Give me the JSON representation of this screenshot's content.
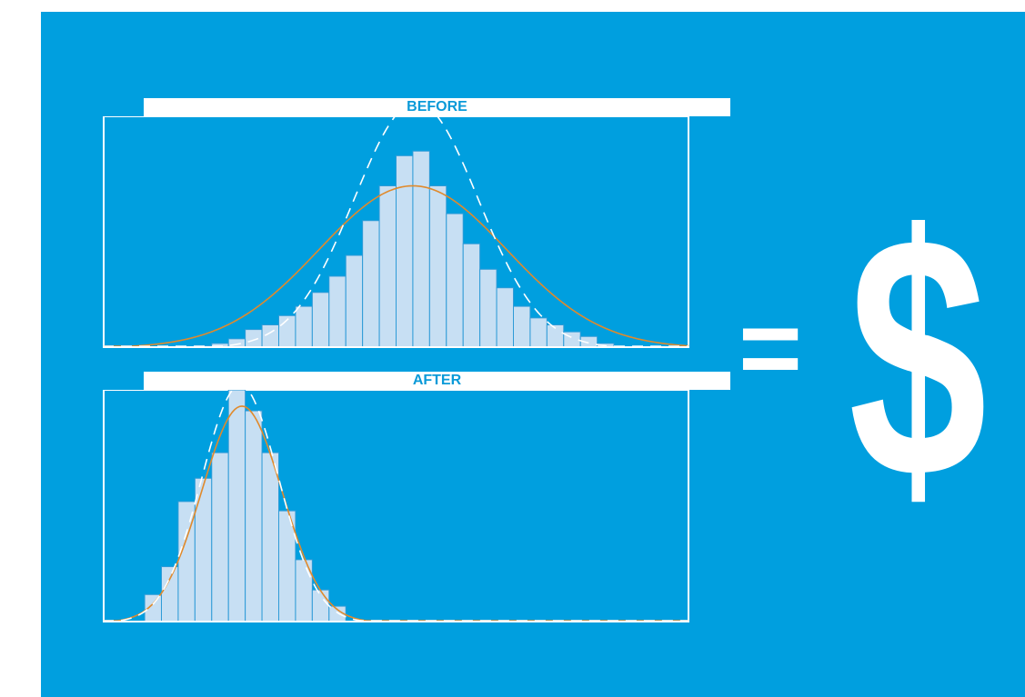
{
  "colors": {
    "background": "#009fdf",
    "bar_fill": "#c7dff3",
    "bar_stroke": "#2e9bd7",
    "fit_curve": "#e08a2c",
    "target_curve": "#ffffff",
    "panel_label_text": "#0a9ad8",
    "symbols": "#ffffff"
  },
  "symbols": {
    "equals": "=",
    "currency": "$"
  },
  "chart_data": [
    {
      "type": "bar",
      "title": "BEFORE",
      "x": [
        -12,
        -11,
        -10,
        -9,
        -8,
        -7,
        -6,
        -5,
        -4,
        -3,
        -2,
        -1,
        0,
        1,
        2,
        3,
        4,
        5,
        6,
        7,
        8,
        9,
        10,
        11,
        12
      ],
      "values": [
        1,
        2,
        4,
        8,
        10,
        14,
        18,
        24,
        31,
        40,
        55,
        70,
        83,
        85,
        70,
        58,
        45,
        34,
        26,
        18,
        13,
        10,
        7,
        5,
        2
      ],
      "xlim": [
        -18,
        17
      ],
      "ylim": [
        0,
        100
      ],
      "series": [
        {
          "name": "",
          "kind": "curve",
          "style": "solid",
          "mean": 0.5,
          "sd": 5.6,
          "peak": 70
        },
        {
          "name": "",
          "kind": "curve",
          "style": "dashed",
          "mean": 0.7,
          "sd": 3.7,
          "peak": 106
        }
      ],
      "grid": false
    },
    {
      "type": "bar",
      "title": "AFTER",
      "x": [
        -15,
        -14,
        -13,
        -12,
        -11,
        -10,
        -9,
        -8,
        -7,
        -6,
        -5,
        -4
      ],
      "values": [
        12,
        24,
        52,
        62,
        73,
        100,
        91,
        73,
        48,
        27,
        14,
        7
      ],
      "xlim": [
        -18,
        17
      ],
      "ylim": [
        0,
        100
      ],
      "series": [
        {
          "name": "",
          "kind": "curve",
          "style": "solid",
          "mean": -9.7,
          "sd": 2.4,
          "peak": 93
        },
        {
          "name": "",
          "kind": "curve",
          "style": "dashed",
          "mean": -9.8,
          "sd": 2.3,
          "peak": 102
        }
      ],
      "grid": false
    }
  ]
}
